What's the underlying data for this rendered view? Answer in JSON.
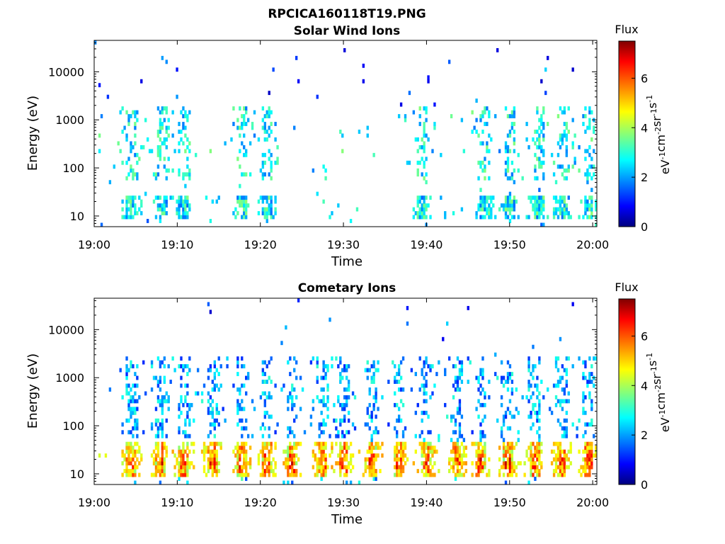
{
  "figure_title": "RPCICA160118T19.PNG",
  "colors": {
    "colormap": "jet",
    "axes": "#000000",
    "background": "#ffffff"
  },
  "chart_data": [
    {
      "type": "heatmap",
      "title": "Solar Wind Ions",
      "xlabel": "Time",
      "ylabel": "Energy (eV)",
      "x_ticks": [
        "19:00",
        "19:10",
        "19:20",
        "19:30",
        "19:40",
        "19:50",
        "20:00"
      ],
      "xlim_minutes": [
        0,
        60.5
      ],
      "y_scale": "log",
      "y_ticks": [
        "10",
        "100",
        "1000",
        "10000"
      ],
      "ylim_eV": [
        6,
        45000
      ],
      "colorbar": {
        "label": "Flux",
        "unit_label": "eV⁻¹cm⁻²sr⁻¹s⁻¹",
        "range": [
          0,
          7.5
        ],
        "ticks": [
          "0",
          "2",
          "4",
          "6"
        ]
      },
      "bursts_minutes": [
        4.5,
        8.3,
        10.8,
        17.8,
        20.8,
        39.5,
        47.0,
        50.0,
        53.5,
        56.5,
        59.5
      ],
      "low_energy_band_eV": [
        8,
        25
      ],
      "high_energy_band_eV": [
        60,
        2000
      ],
      "level_low": 2.8,
      "level_high": 2.8
    },
    {
      "type": "heatmap",
      "title": "Cometary Ions",
      "xlabel": "Time",
      "ylabel": "Energy (eV)",
      "x_ticks": [
        "19:00",
        "19:10",
        "19:20",
        "19:30",
        "19:40",
        "19:50",
        "20:00"
      ],
      "xlim_minutes": [
        0,
        60.5
      ],
      "y_scale": "log",
      "y_ticks": [
        "10",
        "100",
        "1000",
        "10000"
      ],
      "ylim_eV": [
        6,
        45000
      ],
      "colorbar": {
        "label": "Flux",
        "unit_label": "eV⁻¹cm⁻²sr⁻¹s⁻¹",
        "range": [
          0,
          7.5
        ],
        "ticks": [
          "0",
          "2",
          "4",
          "6"
        ]
      },
      "bursts_minutes": [
        4.5,
        8.0,
        10.8,
        14.3,
        17.8,
        20.8,
        23.8,
        27.5,
        30.0,
        33.5,
        36.7,
        40.0,
        43.7,
        46.5,
        49.7,
        53.0,
        56.2,
        59.5
      ],
      "low_energy_band_eV": [
        8,
        45
      ],
      "high_energy_band_eV": [
        60,
        3000
      ],
      "level_low": 4.8,
      "level_high": 2.2
    }
  ]
}
